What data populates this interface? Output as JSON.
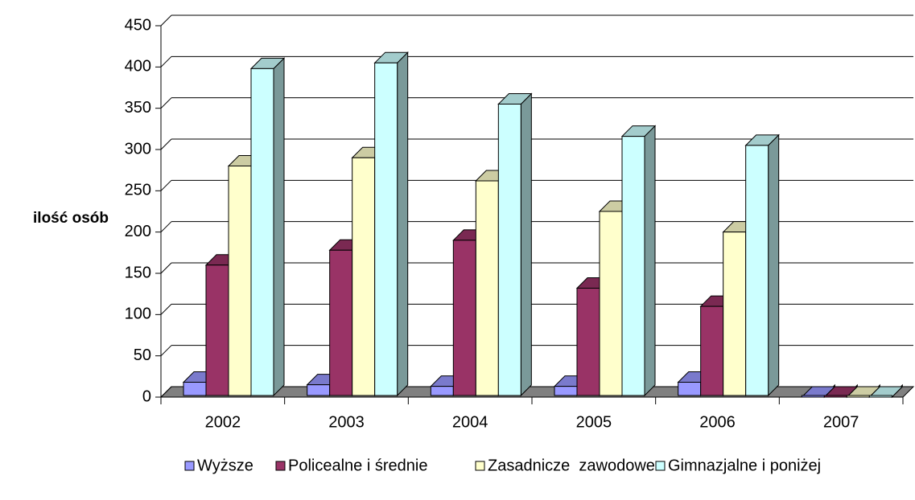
{
  "chart_data": {
    "type": "bar3d",
    "y_label": "ilość osób",
    "categories": [
      "2002",
      "2003",
      "2004",
      "2005",
      "2006",
      "2007"
    ],
    "series": [
      {
        "name": "Wyższe",
        "color": "#9999ff",
        "values": [
          18,
          15,
          13,
          13,
          18,
          0
        ]
      },
      {
        "name": "Policealne i średnie",
        "color": "#993366",
        "values": [
          160,
          178,
          190,
          132,
          110,
          0
        ]
      },
      {
        "name": "Zasadnicze  zawodowe",
        "color": "#ffffcc",
        "values": [
          280,
          290,
          262,
          225,
          200,
          0
        ]
      },
      {
        "name": "Gimnazjalne i poniżej",
        "color": "#ccffff",
        "values": [
          398,
          405,
          355,
          316,
          305,
          0
        ]
      }
    ],
    "ylim": [
      0,
      450
    ],
    "yticks": [
      0,
      50,
      100,
      150,
      200,
      250,
      300,
      350,
      400,
      450
    ],
    "grid": true,
    "legend": "bottom"
  }
}
